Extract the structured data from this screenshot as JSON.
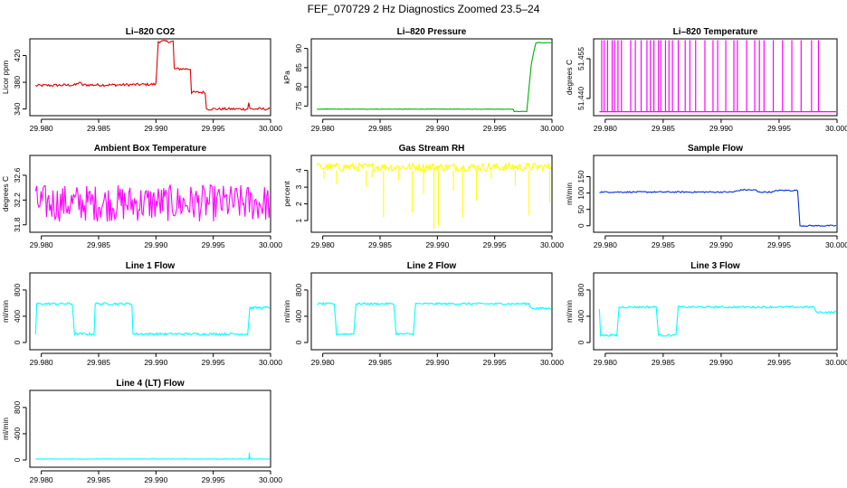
{
  "figure_title": "FEF_070729  2 Hz Diagnostics Zoomed 23.5–24",
  "chart_data": [
    {
      "id": "co2",
      "type": "line",
      "title": "Li–820 CO2",
      "xlabel": "",
      "ylabel": "Licor ppm",
      "color": "#e00000",
      "xlim": [
        29.979,
        30.0
      ],
      "ylim": [
        330,
        445
      ],
      "xticks": [
        29.98,
        29.985,
        29.99,
        29.995,
        30.0
      ],
      "xtick_labels": [
        "29.980",
        "29.985",
        "29.990",
        "29.995",
        "30.000"
      ],
      "yticks": [
        340,
        380,
        420
      ],
      "ytick_labels": [
        "340",
        "380",
        "420"
      ],
      "segments": [
        [
          [
            29.9795,
            375
          ],
          [
            29.983,
            376
          ],
          [
            29.9833,
            380
          ],
          [
            29.9836,
            376
          ],
          [
            29.9865,
            376
          ],
          [
            29.99,
            377
          ],
          [
            29.9902,
            441
          ],
          [
            29.9915,
            441
          ],
          [
            29.9916,
            400
          ],
          [
            29.993,
            400
          ],
          [
            29.9931,
            365
          ],
          [
            29.9943,
            365
          ],
          [
            29.9944,
            340
          ],
          [
            29.998,
            340
          ],
          [
            29.9981,
            350
          ],
          [
            29.9982,
            340
          ],
          [
            29.99995,
            340
          ]
        ]
      ],
      "noise": 2
    },
    {
      "id": "pressure",
      "type": "line",
      "title": "Li–820 Pressure",
      "xlabel": "",
      "ylabel": "kPa",
      "color": "#00b000",
      "xlim": [
        29.979,
        30.0
      ],
      "ylim": [
        72.5,
        92.5
      ],
      "xticks": [
        29.98,
        29.985,
        29.99,
        29.995,
        30.0
      ],
      "xtick_labels": [
        "29.980",
        "29.985",
        "29.990",
        "29.995",
        "30.000"
      ],
      "yticks": [
        75,
        80,
        85,
        90
      ],
      "ytick_labels": [
        "75",
        "80",
        "85",
        "90"
      ],
      "segments": [
        [
          [
            29.9795,
            74.2
          ],
          [
            29.9966,
            74.2
          ],
          [
            29.9967,
            73.6
          ],
          [
            29.9978,
            73.6
          ],
          [
            29.998,
            80
          ],
          [
            29.9982,
            86
          ],
          [
            29.9984,
            89
          ],
          [
            29.9986,
            91.5
          ],
          [
            29.99995,
            91.5
          ]
        ]
      ],
      "noise": 0.05
    },
    {
      "id": "li820_temp",
      "type": "line",
      "title": "Li–820 Temperature",
      "xlabel": "",
      "ylabel": "degrees C",
      "color": "#ff00ff",
      "xlim": [
        29.979,
        30.0
      ],
      "ylim": [
        51.4335,
        51.4625
      ],
      "xticks": [
        29.98,
        29.985,
        29.99,
        29.995,
        30.0
      ],
      "xtick_labels": [
        "29.980",
        "29.985",
        "29.990",
        "29.995",
        "30.000"
      ],
      "yticks": [
        51.44,
        51.455
      ],
      "ytick_labels": [
        "51.440",
        "51.455"
      ],
      "base": 51.435,
      "spike_top": 51.462,
      "spikes": [
        29.9797,
        29.9799,
        29.9802,
        29.9806,
        29.9808,
        29.9811,
        29.9814,
        29.9822,
        29.9826,
        29.9831,
        29.9836,
        29.9839,
        29.9842,
        29.9846,
        29.9848,
        29.9852,
        29.9855,
        29.9858,
        29.9863,
        29.9869,
        29.9873,
        29.9878,
        29.9886,
        29.9893,
        29.9897,
        29.9904,
        29.9911,
        29.9914,
        29.9922,
        29.9929,
        29.9933,
        29.9937,
        29.9945,
        29.9953,
        29.9961,
        29.9969,
        29.9978,
        29.9984
      ]
    },
    {
      "id": "box_temp",
      "type": "line",
      "title": "Ambient Box Temperature",
      "xlabel": "",
      "ylabel": "degrees C",
      "color": "#ff00ff",
      "xlim": [
        29.979,
        30.0
      ],
      "ylim": [
        31.68,
        32.92
      ],
      "xticks": [
        29.98,
        29.985,
        29.99,
        29.995,
        30.0
      ],
      "xtick_labels": [
        "29.980",
        "29.985",
        "29.990",
        "29.995",
        "30.000"
      ],
      "yticks": [
        31.8,
        32.2,
        32.6
      ],
      "ytick_labels": [
        "31.8",
        "32.2",
        "32.6"
      ],
      "segments": [
        [
          [
            29.9795,
            32.15
          ],
          [
            29.99995,
            32.15
          ]
        ]
      ],
      "noise": 0.3
    },
    {
      "id": "rh",
      "type": "line",
      "title": "Gas Stream RH",
      "xlabel": "",
      "ylabel": "percent",
      "color": "#ffff00",
      "xlim": [
        29.979,
        30.0
      ],
      "ylim": [
        0.3,
        4.9
      ],
      "xticks": [
        29.98,
        29.985,
        29.99,
        29.995,
        30.0
      ],
      "xtick_labels": [
        "29.980",
        "29.985",
        "29.990",
        "29.995",
        "30.000"
      ],
      "yticks": [
        1,
        2,
        3,
        4
      ],
      "ytick_labels": [
        "1",
        "2",
        "3",
        "4"
      ],
      "segments": [
        [
          [
            29.9795,
            4.2
          ],
          [
            29.99995,
            4.2
          ]
        ]
      ],
      "noise": 0.25,
      "dips": [
        [
          29.9801,
          3.5
        ],
        [
          29.9812,
          3.2
        ],
        [
          29.9838,
          3.0
        ],
        [
          29.9843,
          3.6
        ],
        [
          29.9853,
          1.2
        ],
        [
          29.9866,
          3.4
        ],
        [
          29.9878,
          1.5
        ],
        [
          29.9888,
          2.6
        ],
        [
          29.9897,
          0.5
        ],
        [
          29.9901,
          0.7
        ],
        [
          29.9914,
          2.8
        ],
        [
          29.9922,
          1.2
        ],
        [
          29.9934,
          2.2
        ],
        [
          29.9947,
          3.5
        ],
        [
          29.9968,
          3.1
        ],
        [
          29.998,
          1.3
        ],
        [
          29.9998,
          2.1
        ]
      ]
    },
    {
      "id": "sample_flow",
      "type": "line",
      "title": "Sample Flow",
      "xlabel": "",
      "ylabel": "ml/min",
      "color": "#0030e0",
      "xlim": [
        29.979,
        30.0
      ],
      "ylim": [
        -20,
        215
      ],
      "xticks": [
        29.98,
        29.985,
        29.99,
        29.995,
        30.0
      ],
      "xtick_labels": [
        "29.980",
        "29.985",
        "29.990",
        "29.995",
        "30.000"
      ],
      "yticks": [
        0,
        50,
        100,
        150
      ],
      "ytick_labels": [
        "0",
        "50",
        "100",
        "150"
      ],
      "segments": [
        [
          [
            29.9795,
            103
          ],
          [
            29.991,
            103
          ],
          [
            29.9918,
            110
          ],
          [
            29.993,
            109
          ],
          [
            29.9932,
            103
          ],
          [
            29.9945,
            103
          ],
          [
            29.9948,
            108
          ],
          [
            29.9966,
            108
          ],
          [
            29.9968,
            0
          ],
          [
            29.99995,
            0
          ]
        ]
      ],
      "noise": 2
    },
    {
      "id": "line1",
      "type": "line",
      "title": "Line 1 Flow",
      "xlabel": "",
      "ylabel": "ml/min",
      "color": "#00ffff",
      "xlim": [
        29.979,
        30.0
      ],
      "ylim": [
        -110,
        1060
      ],
      "xticks": [
        29.98,
        29.985,
        29.99,
        29.995,
        30.0
      ],
      "xtick_labels": [
        "29.980",
        "29.985",
        "29.990",
        "29.995",
        "30.000"
      ],
      "yticks": [
        0,
        400,
        800
      ],
      "ytick_labels": [
        "0",
        "400",
        "800"
      ],
      "segments": [
        [
          [
            29.9795,
            130
          ],
          [
            29.9796,
            590
          ],
          [
            29.9827,
            590
          ],
          [
            29.9829,
            130
          ],
          [
            29.9846,
            130
          ],
          [
            29.9847,
            590
          ],
          [
            29.9879,
            590
          ],
          [
            29.988,
            130
          ],
          [
            29.998,
            130
          ],
          [
            29.9982,
            530
          ],
          [
            29.99995,
            530
          ]
        ]
      ],
      "noise": 18
    },
    {
      "id": "line2",
      "type": "line",
      "title": "Line 2 Flow",
      "xlabel": "",
      "ylabel": "ml/min",
      "color": "#00ffff",
      "xlim": [
        29.979,
        30.0
      ],
      "ylim": [
        -110,
        1060
      ],
      "xticks": [
        29.98,
        29.985,
        29.99,
        29.995,
        30.0
      ],
      "xtick_labels": [
        "29.980",
        "29.985",
        "29.990",
        "29.995",
        "30.000"
      ],
      "yticks": [
        0,
        400,
        800
      ],
      "ytick_labels": [
        "0",
        "400",
        "800"
      ],
      "segments": [
        [
          [
            29.9795,
            590
          ],
          [
            29.981,
            590
          ],
          [
            29.9812,
            130
          ],
          [
            29.9827,
            130
          ],
          [
            29.9829,
            590
          ],
          [
            29.9862,
            590
          ],
          [
            29.9864,
            130
          ],
          [
            29.9879,
            130
          ],
          [
            29.9881,
            590
          ],
          [
            29.998,
            590
          ],
          [
            29.9982,
            520
          ],
          [
            29.99995,
            520
          ]
        ]
      ],
      "noise": 15
    },
    {
      "id": "line3",
      "type": "line",
      "title": "Line 3 Flow",
      "xlabel": "",
      "ylabel": "ml/min",
      "color": "#00ffff",
      "xlim": [
        29.979,
        30.0
      ],
      "ylim": [
        -110,
        1060
      ],
      "xticks": [
        29.98,
        29.985,
        29.99,
        29.995,
        30.0
      ],
      "xtick_labels": [
        "29.980",
        "29.985",
        "29.990",
        "29.995",
        "30.000"
      ],
      "yticks": [
        0,
        400,
        800
      ],
      "ytick_labels": [
        "0",
        "400",
        "800"
      ],
      "segments": [
        [
          [
            29.9795,
            520
          ],
          [
            29.9796,
            110
          ],
          [
            29.981,
            110
          ],
          [
            29.9812,
            540
          ],
          [
            29.9844,
            540
          ],
          [
            29.9846,
            110
          ],
          [
            29.9861,
            110
          ],
          [
            29.9863,
            540
          ],
          [
            29.998,
            540
          ],
          [
            29.9982,
            460
          ],
          [
            29.99995,
            460
          ]
        ]
      ],
      "noise": 15
    },
    {
      "id": "line4",
      "type": "line",
      "title": "Line 4 (LT) Flow",
      "xlabel": "",
      "ylabel": "ml/min",
      "color": "#00ffff",
      "xlim": [
        29.979,
        30.0
      ],
      "ylim": [
        -110,
        1060
      ],
      "xticks": [
        29.98,
        29.985,
        29.99,
        29.995,
        30.0
      ],
      "xtick_labels": [
        "29.980",
        "29.985",
        "29.990",
        "29.995",
        "30.000"
      ],
      "yticks": [
        0,
        400,
        800
      ],
      "ytick_labels": [
        "0",
        "400",
        "800"
      ],
      "segments": [
        [
          [
            29.9795,
            15
          ],
          [
            29.9981,
            15
          ],
          [
            29.99815,
            110
          ],
          [
            29.9982,
            15
          ],
          [
            29.99995,
            15
          ]
        ]
      ],
      "noise": 3
    }
  ]
}
